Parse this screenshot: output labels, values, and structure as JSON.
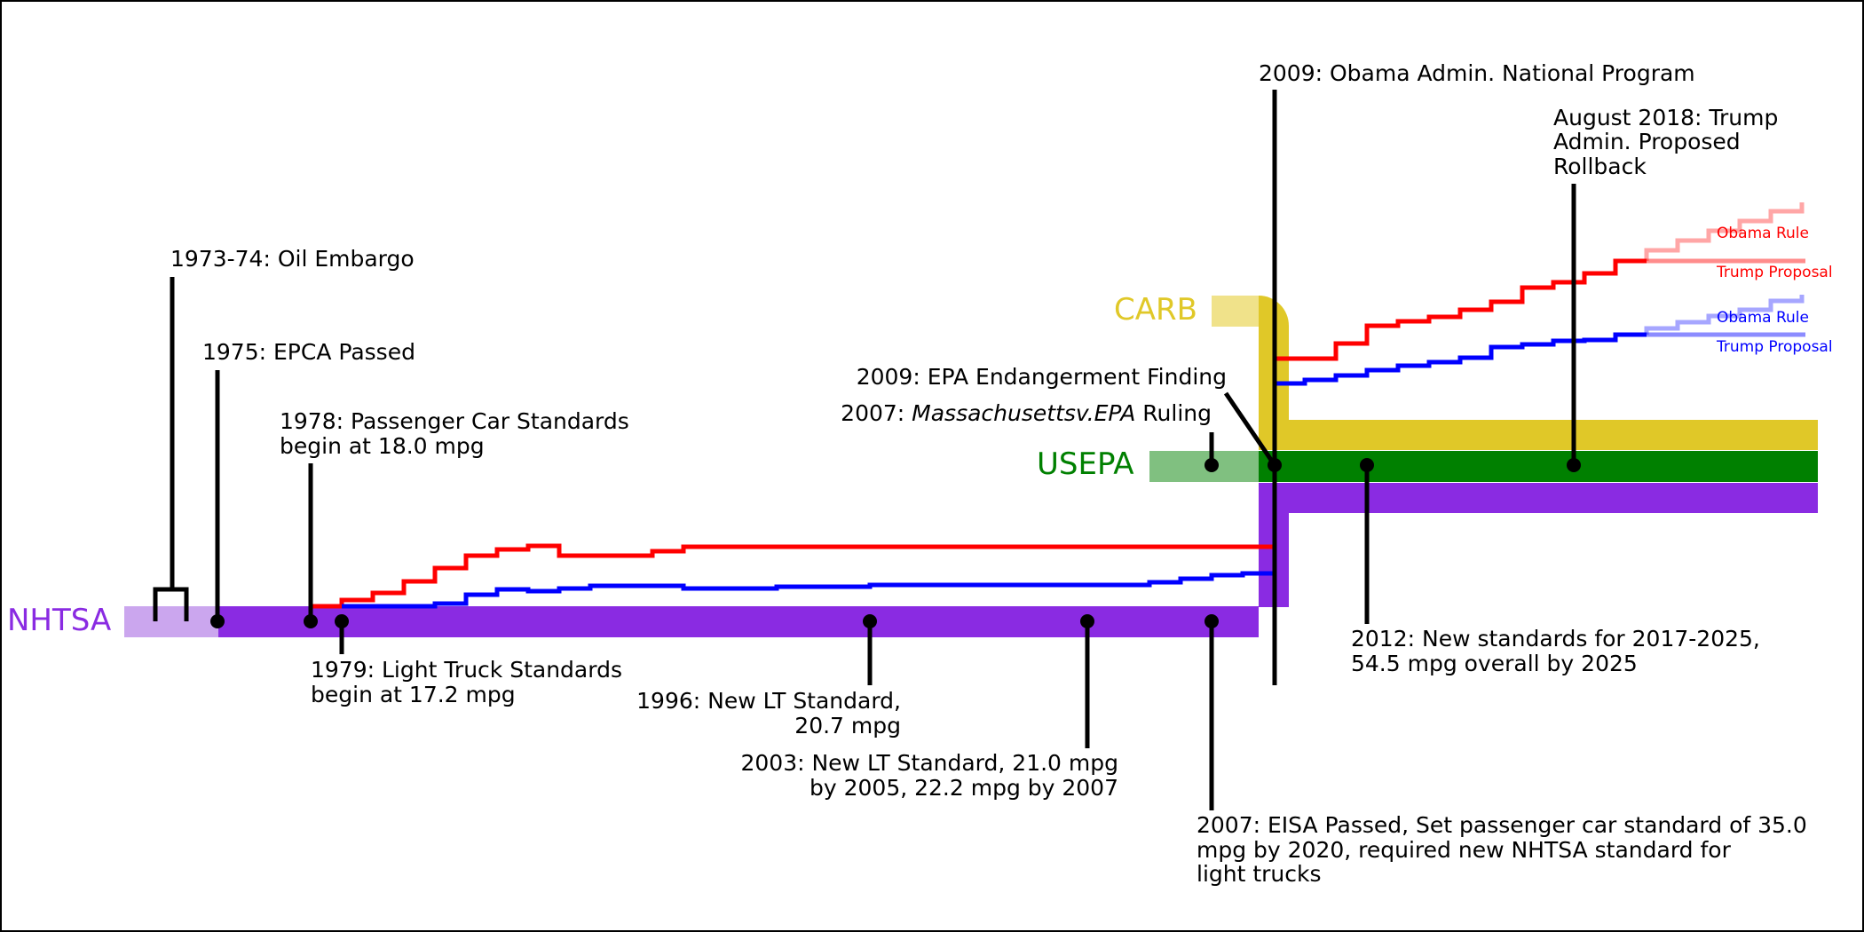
{
  "agencies": {
    "nhtsa": {
      "label": "NHTSA",
      "color": "#8a2be2"
    },
    "usepa": {
      "label": "USEPA",
      "color": "#008000"
    },
    "carb": {
      "label": "CARB",
      "color": "#e0c828"
    }
  },
  "legend": {
    "car_obama": "Obama Rule",
    "car_trump": "Trump Proposal",
    "truck_obama": "Obama Rule",
    "truck_trump": "Trump Proposal"
  },
  "series_colors": {
    "passenger_car": "#ff0000",
    "light_truck": "#0000ff"
  },
  "events": {
    "oil_embargo": "1973-74: Oil Embargo",
    "epca": "1975: EPCA Passed",
    "car_std_1": "1978: Passenger Car Standards",
    "car_std_2": "begin at 18.0 mpg",
    "lt_std_1": "1979: Light Truck Standards",
    "lt_std_2": "begin at 17.2 mpg",
    "lt_1996_1": "1996: New LT Standard,",
    "lt_1996_2": "20.7 mpg",
    "lt_2003_1": "2003: New LT Standard, 21.0 mpg",
    "lt_2003_2": "by 2005, 22.2 mpg by 2007",
    "eisa_1": "2007: EISA Passed, Set passenger car standard of 35.0",
    "eisa_2": "mpg by 2020, required new NHTSA standard for",
    "eisa_3": "light trucks",
    "mass_epa_prefix": "2007: ",
    "mass_epa_case": "Massachusettsv.EPA",
    "mass_epa_suffix": " Ruling",
    "endangerment": "2009: EPA Endangerment Finding",
    "national_program": "2009: Obama Admin. National Program",
    "std_2012_1": "2012: New standards for 2017-2025,",
    "std_2012_2": "54.5 mpg overall by 2025",
    "rollback_1": "August 2018: Trump",
    "rollback_2": "Admin. Proposed",
    "rollback_3": "Rollback"
  }
}
